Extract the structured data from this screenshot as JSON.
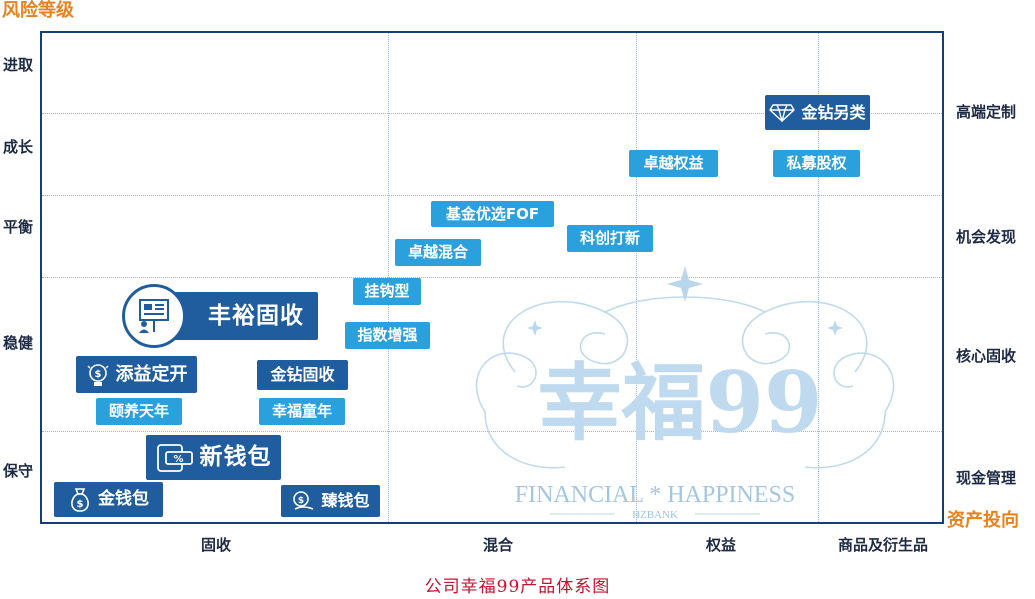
{
  "axes": {
    "y_title": "风险等级",
    "x_title": "资产投向",
    "left_levels": [
      "进取",
      "成长",
      "平衡",
      "稳健",
      "保守"
    ],
    "right_labels": [
      "高端定制",
      "机会发现",
      "核心固收",
      "现金管理"
    ],
    "bottom_categories": [
      "固收",
      "混合",
      "权益",
      "商品及衍生品"
    ]
  },
  "products": {
    "jinzuan_linglei": "金钻另类",
    "zhuoyue_quanyi": "卓越权益",
    "simu_guquan": "私募股权",
    "jijin_youxuan_fof": "基金优选FOF",
    "kechuang_daxin": "科创打新",
    "zhuoyue_hunhe": "卓越混合",
    "guagou_xing": "挂钩型",
    "fengyu_gushou": "丰裕固收",
    "zhishu_zengqiang": "指数增强",
    "tianyi_dingkai": "添益定开",
    "jinzuan_gushou": "金钻固收",
    "yiyang_tiannian": "颐养天年",
    "xingfu_tongnian": "幸福童年",
    "xin_qianbao": "新钱包",
    "jin_qianbao": "金钱包",
    "zhen_qianbao": "臻钱包"
  },
  "watermark": {
    "brand": "幸福99",
    "tagline": "FINANCIAL * HAPPINESS",
    "bank": "HZBANK"
  },
  "caption": "公司幸福99产品体系图",
  "colors": {
    "axis_title": "#e8821e",
    "frame": "#173f73",
    "chip_light": "#2aa0dc",
    "chip_dark": "#1f5d9e",
    "caption": "#c8102e"
  },
  "icons": {
    "jinzuan_linglei": "diamond-icon",
    "fengyu_gushou": "presentation-board-icon",
    "tianyi_dingkai": "lightbulb-coin-icon",
    "xin_qianbao": "phone-coupon-icon",
    "jin_qianbao": "money-bag-icon",
    "zhen_qianbao": "coin-hand-icon"
  }
}
